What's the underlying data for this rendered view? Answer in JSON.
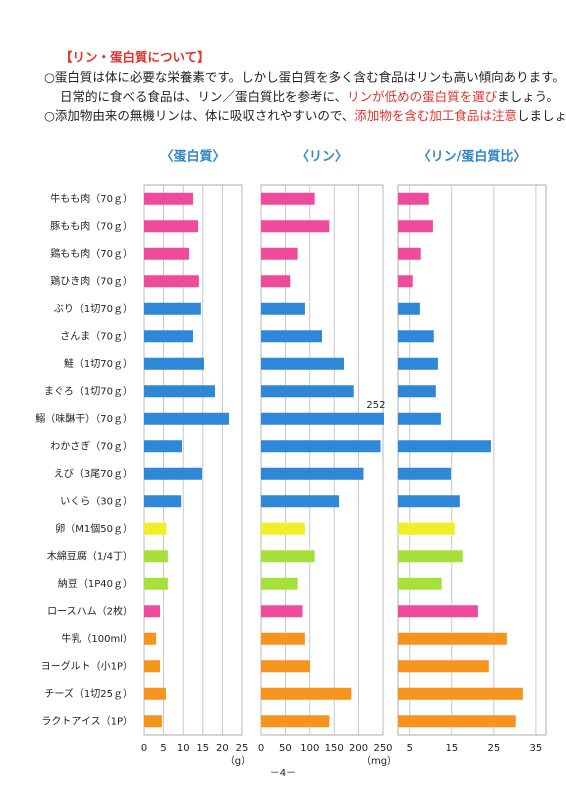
{
  "header": {
    "title": "【リン・蛋白質について】",
    "line1": "○蛋白質は体に必要な栄養素です。しかし蛋白質を多く含む食品はリンも高い傾向あります。",
    "line2": [
      "日常的に食べる食品は、リン／蛋白質比を参考に、",
      "リンが低めの蛋白質を選び",
      "ましょう。"
    ],
    "line3": [
      "○添加物由来の無機リンは、体に吸収されやすいので、",
      "添加物を含む加工食品は注意",
      "しましょう。"
    ]
  },
  "categories": [
    "牛もも肉（70ｇ）",
    "豚もも肉（70ｇ）",
    "鶏もも肉（70ｇ）",
    "鶏ひき肉（70ｇ）",
    "ぶり（1切70ｇ）",
    "さんま（70ｇ）",
    "鮭（1切70ｇ）",
    "まぐろ（1切70ｇ）",
    "鰯（味醂干）（70ｇ）",
    "わかさぎ（70ｇ）",
    "えび（3尾70ｇ）",
    "いくら（30ｇ）",
    "卵（M1個50ｇ）",
    "木綿豆腐（1/4丁）",
    "納豆（1P40ｇ）",
    "ロースハム（2枚）",
    "牛乳（100ml）",
    "ヨーグルト（小1P）",
    "チーズ（1切25ｇ）",
    "ラクトアイス（1P）"
  ],
  "colors": [
    "#f04a9b",
    "#f04a9b",
    "#f04a9b",
    "#f04a9b",
    "#2f87d8",
    "#2f87d8",
    "#2f87d8",
    "#2f87d8",
    "#2f87d8",
    "#2f87d8",
    "#2f87d8",
    "#2f87d8",
    "#eef025",
    "#a6e03a",
    "#a6e03a",
    "#f04a9b",
    "#f7941d",
    "#f7941d",
    "#f7941d",
    "#f7941d"
  ],
  "chart_data": [
    {
      "type": "bar",
      "title": "〈蛋白質〉",
      "unit": "（g）",
      "xlim": [
        0,
        25
      ],
      "xticks": [
        0,
        5,
        10,
        15,
        20,
        25
      ],
      "values": [
        12.5,
        13.8,
        11.5,
        14,
        14.5,
        12.5,
        15.3,
        18.1,
        21.7,
        9.7,
        14.8,
        9.5,
        5.7,
        6.1,
        6.1,
        4.1,
        3.1,
        4.1,
        5.6,
        4.6
      ]
    },
    {
      "type": "bar",
      "title": "〈リン〉",
      "unit": "（mg）",
      "xlim": [
        0,
        250
      ],
      "xticks": [
        0,
        50,
        100,
        150,
        200,
        250
      ],
      "values": [
        110,
        140,
        75,
        60,
        90,
        125,
        170,
        190,
        252,
        245,
        210,
        160,
        90,
        110,
        75,
        85,
        90,
        100,
        185,
        140
      ],
      "value_labels": [
        null,
        null,
        null,
        null,
        null,
        null,
        null,
        null,
        "252",
        null,
        null,
        null,
        null,
        null,
        null,
        null,
        null,
        null,
        null,
        null
      ]
    },
    {
      "type": "bar",
      "title": "〈リン/蛋白質比〉",
      "xlim": [
        2.2,
        37.4
      ],
      "xticks": [
        5,
        15,
        25,
        35
      ],
      "values": [
        9.5,
        10.5,
        7.6,
        5.7,
        7.4,
        10.7,
        11.7,
        11.2,
        12.4,
        24.3,
        14.8,
        16.9,
        15.7,
        17.6,
        12.6,
        21.2,
        28.1,
        23.8,
        31.9,
        30.2
      ]
    }
  ],
  "page_number": "－4－"
}
